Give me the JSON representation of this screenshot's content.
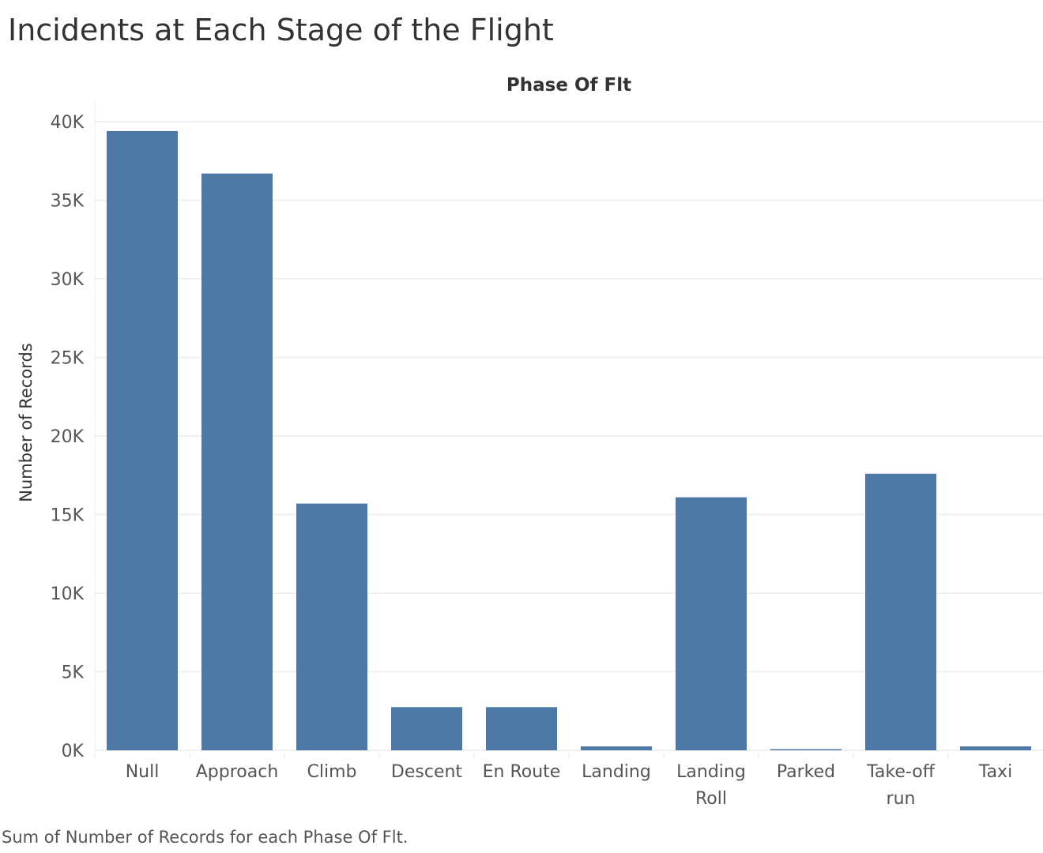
{
  "page": {
    "title": "Incidents at Each Stage of the Flight",
    "caption": "Sum of Number of Records for each Phase Of Flt."
  },
  "colors": {
    "bar": "#4e79a7",
    "grid": "#ececec",
    "axis_text": "#555555",
    "title_text": "#333333"
  },
  "chart_data": {
    "type": "bar",
    "title": "Phase Of Flt",
    "xlabel": "",
    "ylabel": "Number of Records",
    "categories": [
      [
        "Null"
      ],
      [
        "Approach"
      ],
      [
        "Climb"
      ],
      [
        "Descent"
      ],
      [
        "En Route"
      ],
      [
        "Landing"
      ],
      [
        "Landing",
        "Roll"
      ],
      [
        "Parked"
      ],
      [
        "Take-off",
        "run"
      ],
      [
        "Taxi"
      ]
    ],
    "values": [
      39400,
      36700,
      15700,
      2750,
      2750,
      250,
      16100,
      60,
      17600,
      250
    ],
    "ylim": [
      0,
      40000
    ],
    "yticks": [
      0,
      5000,
      10000,
      15000,
      20000,
      25000,
      30000,
      35000,
      40000
    ],
    "ytick_labels": [
      "0K",
      "5K",
      "10K",
      "15K",
      "20K",
      "25K",
      "30K",
      "35K",
      "40K"
    ],
    "grid": true
  }
}
